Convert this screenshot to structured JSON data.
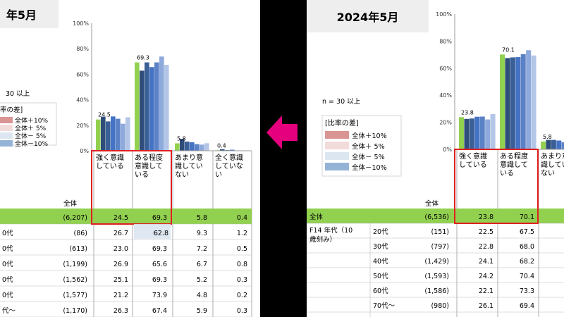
{
  "colors": {
    "accent_green": "#92d050",
    "series": [
      "#92d050",
      "#2f4d7a",
      "#3a5f96",
      "#4472c4",
      "#5b82c6",
      "#8ea9db",
      "#b4c6e7",
      "#c9d5ea"
    ],
    "diff_plus10": "#d99594",
    "diff_plus5": "#f2dcdb",
    "diff_minus5": "#dce6f1",
    "diff_minus10": "#95b3d7",
    "highlight_border": "#e02020",
    "total_row": "#92d050",
    "arrow": "#e5007e"
  },
  "left": {
    "title": "年5月",
    "n_note": "30 以上",
    "legend_title": "率の差]",
    "legend": [
      "全体＋10%",
      "全体＋ 5%",
      "全体－ 5%",
      "全体－10%"
    ],
    "total_label": "全体",
    "columns": [
      "強く意識している",
      "ある程度意識している",
      "あまり意識していない",
      "全く意識していない"
    ],
    "column_lines": [
      [
        "強く意識",
        "している"
      ],
      [
        "ある程度",
        "意識して",
        "いる"
      ],
      [
        "あまり意",
        "識してい",
        "ない"
      ],
      [
        "全く意識",
        "していな",
        "い"
      ]
    ],
    "rows": [
      {
        "label": "",
        "n": "(6,207)",
        "values": [
          "24.5",
          "69.3",
          "5.8",
          "0.4"
        ],
        "total": true
      },
      {
        "label": "0代",
        "n": "(86)",
        "values": [
          "26.7",
          "62.8",
          "9.3",
          "1.2"
        ]
      },
      {
        "label": "0代",
        "n": "(613)",
        "values": [
          "23.0",
          "69.3",
          "7.2",
          "0.5"
        ]
      },
      {
        "label": "0代",
        "n": "(1,199)",
        "values": [
          "26.9",
          "65.6",
          "6.7",
          "0.8"
        ]
      },
      {
        "label": "0代",
        "n": "(1,562)",
        "values": [
          "25.1",
          "69.3",
          "5.2",
          "0.3"
        ]
      },
      {
        "label": "0代",
        "n": "(1,577)",
        "values": [
          "21.2",
          "73.9",
          "4.8",
          "0.2"
        ]
      },
      {
        "label": "代～",
        "n": "(1,170)",
        "values": [
          "26.3",
          "67.4",
          "5.9",
          "0.3"
        ]
      }
    ]
  },
  "right": {
    "title": "2024年5月",
    "n_note": "n = 30 以上",
    "legend_title": "[比率の差]",
    "legend": [
      "全体＋10%",
      "全体＋ 5%",
      "全体－ 5%",
      "全体－10%"
    ],
    "total_label": "全体",
    "group_label": [
      "F14 年代（10",
      "歳刻み）"
    ],
    "columns": [
      "強く意識している",
      "ある程度意識している",
      "あまり意識していない"
    ],
    "column_lines": [
      [
        "強く意識",
        "している"
      ],
      [
        "ある程度",
        "意識して",
        "いる"
      ],
      [
        "あまり意",
        "識してい",
        "ない"
      ]
    ],
    "rows": [
      {
        "label": "全体",
        "n": "(6,536)",
        "values": [
          "23.8",
          "70.1"
        ],
        "total": true
      },
      {
        "label": "20代",
        "n": "(151)",
        "values": [
          "22.5",
          "67.5"
        ]
      },
      {
        "label": "30代",
        "n": "(797)",
        "values": [
          "22.8",
          "68.0"
        ]
      },
      {
        "label": "40代",
        "n": "(1,429)",
        "values": [
          "24.1",
          "68.2"
        ]
      },
      {
        "label": "50代",
        "n": "(1,593)",
        "values": [
          "24.2",
          "70.4"
        ]
      },
      {
        "label": "60代",
        "n": "(1,586)",
        "values": [
          "22.1",
          "73.3"
        ]
      },
      {
        "label": "70代～",
        "n": "(980)",
        "values": [
          "26.1",
          "69.4"
        ]
      }
    ]
  },
  "chart_data": [
    {
      "type": "bar",
      "title": "年5月",
      "categories": [
        "強く意識している",
        "ある程度意識している",
        "あまり意識していない",
        "全く意識していない"
      ],
      "yticks": [
        "100%",
        "80%",
        "60%",
        "40%",
        "20%",
        "0%"
      ],
      "ylim": [
        0,
        100
      ],
      "total_labels": [
        "24.5",
        "69.3",
        "5.8",
        "0.4"
      ],
      "series": [
        {
          "values": [
            24.5,
            69.3,
            5.8,
            0.4
          ]
        },
        {
          "values": [
            26.7,
            62.8,
            9.3,
            1.2
          ]
        },
        {
          "values": [
            23.0,
            69.3,
            7.2,
            0.5
          ]
        },
        {
          "values": [
            26.9,
            65.6,
            6.7,
            0.8
          ]
        },
        {
          "values": [
            25.1,
            69.3,
            5.2,
            0.3
          ]
        },
        {
          "values": [
            21.2,
            73.9,
            4.8,
            0.2
          ]
        },
        {
          "values": [
            26.3,
            67.4,
            5.9,
            0.3
          ]
        }
      ]
    },
    {
      "type": "bar",
      "title": "2024年5月",
      "categories": [
        "強く意識している",
        "ある程度意識している",
        "あまり意識していない"
      ],
      "yticks": [
        "100%",
        "80%",
        "60%",
        "40%",
        "20%",
        "0%"
      ],
      "ylim": [
        0,
        100
      ],
      "total_labels": [
        "23.8",
        "70.1",
        "5.8"
      ],
      "series": [
        {
          "values": [
            23.8,
            70.1,
            5.8
          ]
        },
        {
          "values": [
            22.5,
            67.5,
            7.0
          ]
        },
        {
          "values": [
            22.8,
            68.0,
            7.0
          ]
        },
        {
          "values": [
            24.1,
            68.2,
            6.5
          ]
        },
        {
          "values": [
            24.2,
            70.4,
            5.2
          ]
        },
        {
          "values": [
            22.1,
            73.3,
            4.9
          ]
        },
        {
          "values": [
            26.1,
            69.4,
            4.8
          ]
        }
      ]
    }
  ]
}
